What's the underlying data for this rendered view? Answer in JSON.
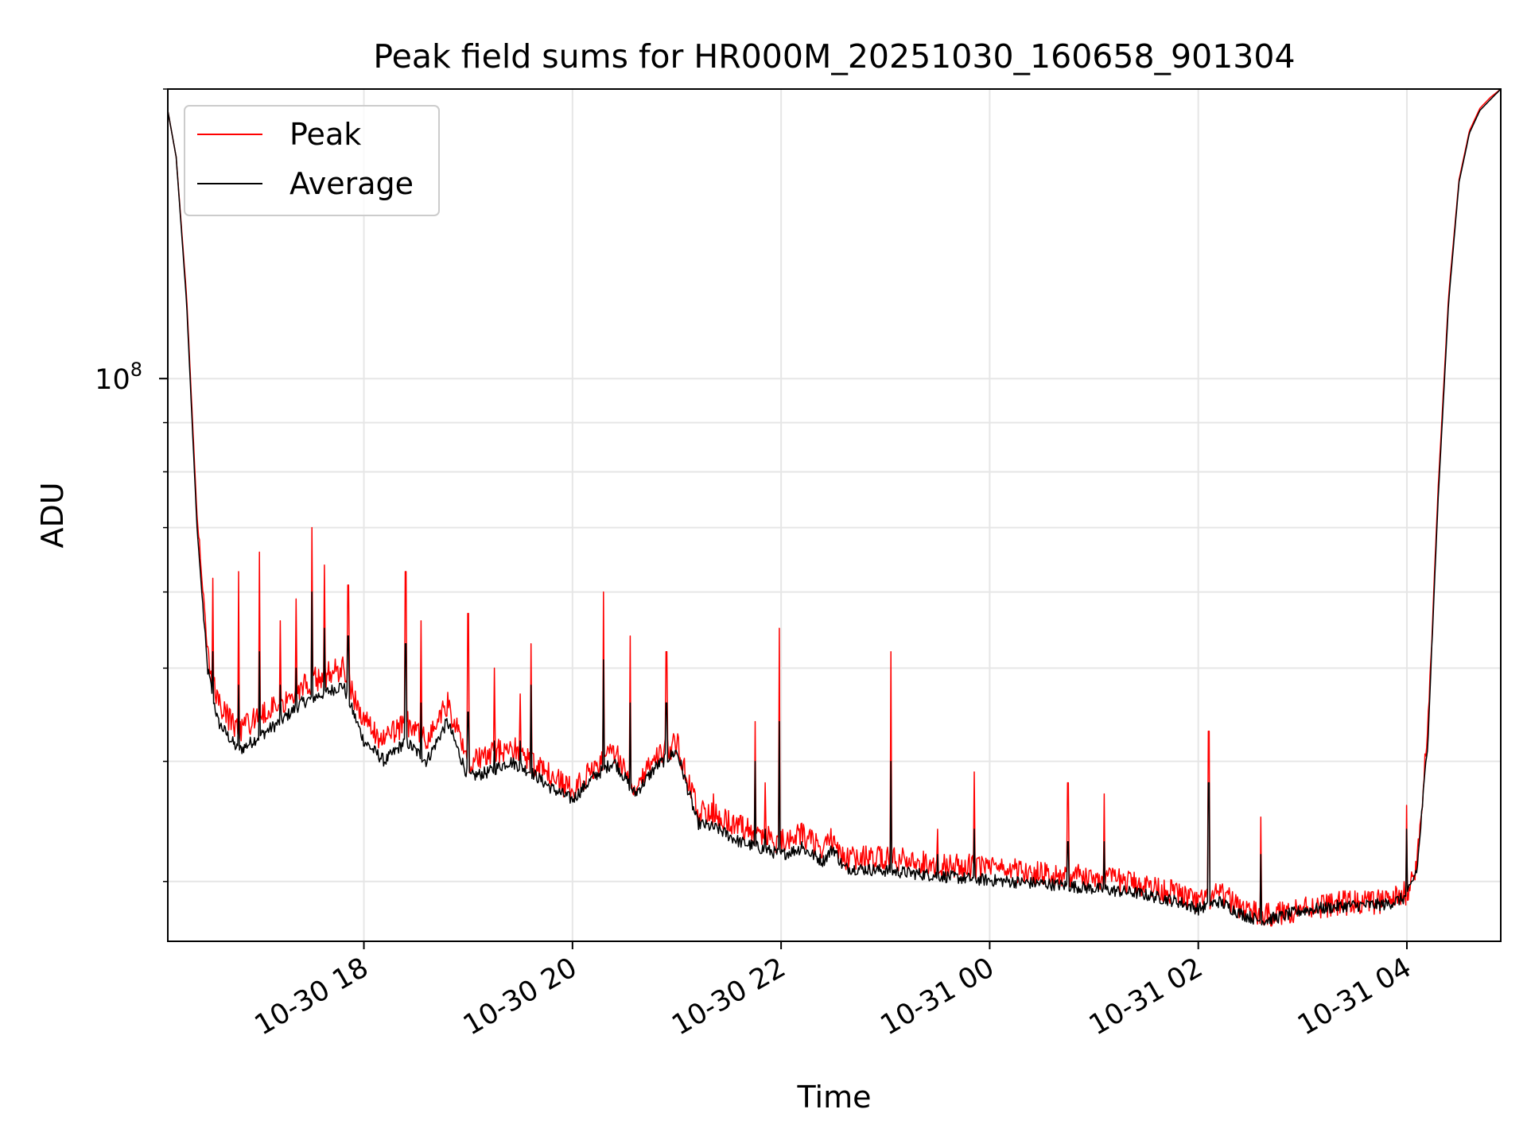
{
  "chart_data": {
    "type": "line",
    "title": "Peak field sums for HR000M_20251030_160658_901304",
    "xlabel": "Time",
    "ylabel": "ADU",
    "yscale": "log",
    "ylim": [
      26000000,
      200000000
    ],
    "y_major_tick": {
      "value": 100000000,
      "label_base": "10",
      "label_exp": "8"
    },
    "y_minor_ticks": [
      30000000,
      40000000,
      50000000,
      60000000,
      70000000,
      80000000,
      90000000,
      200000000
    ],
    "x_unit": "hours since 2025-10-30 00:00",
    "xlim": [
      16.12,
      28.9
    ],
    "x_ticks": [
      {
        "value": 18,
        "label": "10-30 18"
      },
      {
        "value": 20,
        "label": "10-30 20"
      },
      {
        "value": 22,
        "label": "10-30 22"
      },
      {
        "value": 24,
        "label": "10-31 00"
      },
      {
        "value": 26,
        "label": "10-31 02"
      },
      {
        "value": 28,
        "label": "10-31 04"
      }
    ],
    "grid": true,
    "legend_position": "top-left",
    "series": [
      {
        "name": "Average",
        "color": "#000000",
        "noise_amplitude": 0.015,
        "x": [
          16.12,
          16.2,
          16.3,
          16.4,
          16.5,
          16.6,
          16.8,
          17.0,
          17.2,
          17.4,
          17.6,
          17.8,
          18.0,
          18.2,
          18.4,
          18.6,
          18.8,
          19.0,
          19.2,
          19.4,
          19.6,
          19.8,
          20.0,
          20.2,
          20.4,
          20.6,
          20.8,
          21.0,
          21.2,
          21.4,
          21.6,
          21.8,
          22.0,
          22.2,
          22.4,
          22.5,
          22.6,
          23.0,
          23.4,
          23.8,
          24.2,
          24.6,
          25.0,
          25.4,
          25.8,
          26.0,
          26.2,
          26.4,
          26.6,
          26.8,
          27.0,
          27.4,
          27.8,
          28.0,
          28.1,
          28.2,
          28.3,
          28.4,
          28.5,
          28.6,
          28.7,
          28.8,
          28.9
        ],
        "values": [
          190000000,
          170000000,
          120000000,
          70000000,
          50000000,
          44000000,
          41000000,
          42500000,
          44000000,
          46000000,
          47000000,
          48000000,
          42000000,
          40000000,
          42000000,
          40000000,
          44000000,
          38500000,
          39000000,
          40000000,
          39000000,
          37500000,
          36500000,
          38500000,
          40000000,
          37000000,
          39500000,
          41000000,
          34500000,
          34000000,
          33000000,
          32500000,
          32000000,
          32500000,
          31500000,
          32500000,
          31000000,
          30800000,
          30500000,
          30200000,
          30000000,
          29800000,
          29500000,
          29200000,
          28600000,
          28100000,
          28600000,
          27800000,
          27300000,
          27600000,
          28000000,
          28300000,
          28400000,
          28900000,
          31000000,
          42000000,
          75000000,
          120000000,
          160000000,
          180000000,
          190000000,
          195000000,
          200000000
        ]
      },
      {
        "name": "Peak",
        "color": "#ff0000",
        "noise_amplitude": 0.03,
        "x": [
          16.12,
          16.2,
          16.3,
          16.4,
          16.5,
          16.6,
          16.8,
          17.0,
          17.2,
          17.4,
          17.6,
          17.8,
          18.0,
          18.2,
          18.4,
          18.6,
          18.8,
          19.0,
          19.2,
          19.4,
          19.6,
          19.8,
          20.0,
          20.2,
          20.4,
          20.6,
          20.8,
          21.0,
          21.2,
          21.4,
          21.6,
          21.8,
          22.0,
          22.2,
          22.4,
          22.5,
          22.6,
          23.0,
          23.4,
          23.8,
          24.2,
          24.6,
          25.0,
          25.4,
          25.8,
          26.0,
          26.2,
          26.4,
          26.6,
          26.8,
          27.0,
          27.4,
          27.8,
          28.0,
          28.1,
          28.2,
          28.3,
          28.4,
          28.5,
          28.6,
          28.7,
          28.8,
          28.9
        ],
        "values": [
          190000000,
          170000000,
          122000000,
          72000000,
          52000000,
          46000000,
          43000000,
          44500000,
          46000000,
          48000000,
          49000000,
          50000000,
          44000000,
          42000000,
          44000000,
          42000000,
          46000000,
          40000000,
          40500000,
          41500000,
          40000000,
          38500000,
          37300000,
          39500000,
          41000000,
          37800000,
          40500000,
          41800000,
          35500000,
          35200000,
          34200000,
          33500000,
          33000000,
          33500000,
          32500000,
          33300000,
          31800000,
          31700000,
          31400000,
          31100000,
          30800000,
          30600000,
          30300000,
          29900000,
          29200000,
          28500000,
          29100000,
          28300000,
          27600000,
          27800000,
          28200000,
          28500000,
          28600000,
          29200000,
          31500000,
          43000000,
          77000000,
          122000000,
          161000000,
          181000000,
          191000000,
          196000000,
          200000000
        ]
      }
    ],
    "spikes": [
      {
        "x": 16.42,
        "peak": 68000000,
        "avg": 60000000
      },
      {
        "x": 16.55,
        "peak": 62000000,
        "avg": 52000000
      },
      {
        "x": 16.8,
        "peak": 63000000,
        "avg": 48000000
      },
      {
        "x": 17.0,
        "peak": 66000000,
        "avg": 52000000
      },
      {
        "x": 17.2,
        "peak": 56000000,
        "avg": 48000000
      },
      {
        "x": 17.35,
        "peak": 59000000,
        "avg": 50000000
      },
      {
        "x": 17.5,
        "peak": 70000000,
        "avg": 60000000
      },
      {
        "x": 17.62,
        "peak": 64000000,
        "avg": 55000000
      },
      {
        "x": 17.85,
        "peak": 61000000,
        "avg": 54000000
      },
      {
        "x": 18.4,
        "peak": 63000000,
        "avg": 53000000
      },
      {
        "x": 18.55,
        "peak": 56000000,
        "avg": 46000000
      },
      {
        "x": 19.0,
        "peak": 57000000,
        "avg": 45000000
      },
      {
        "x": 19.25,
        "peak": 50000000,
        "avg": 42000000
      },
      {
        "x": 19.5,
        "peak": 47000000,
        "avg": 42000000
      },
      {
        "x": 19.6,
        "peak": 53000000,
        "avg": 48000000
      },
      {
        "x": 20.3,
        "peak": 60000000,
        "avg": 51000000
      },
      {
        "x": 20.55,
        "peak": 54000000,
        "avg": 46000000
      },
      {
        "x": 20.9,
        "peak": 52000000,
        "avg": 46000000
      },
      {
        "x": 21.15,
        "peak": 37000000,
        "avg": 34000000
      },
      {
        "x": 21.35,
        "peak": 37000000,
        "avg": 34000000
      },
      {
        "x": 21.75,
        "peak": 44000000,
        "avg": 40000000
      },
      {
        "x": 21.85,
        "peak": 38000000,
        "avg": 34000000
      },
      {
        "x": 21.98,
        "peak": 55000000,
        "avg": 44000000
      },
      {
        "x": 22.2,
        "peak": 34500000,
        "avg": 33000000
      },
      {
        "x": 23.05,
        "peak": 52000000,
        "avg": 40000000
      },
      {
        "x": 23.5,
        "peak": 34000000,
        "avg": 32000000
      },
      {
        "x": 23.85,
        "peak": 39000000,
        "avg": 34000000
      },
      {
        "x": 24.75,
        "peak": 38000000,
        "avg": 33000000
      },
      {
        "x": 25.1,
        "peak": 37000000,
        "avg": 33000000
      },
      {
        "x": 26.1,
        "peak": 43000000,
        "avg": 38000000
      },
      {
        "x": 26.6,
        "peak": 35000000,
        "avg": 32000000
      },
      {
        "x": 28.0,
        "peak": 36000000,
        "avg": 34000000
      }
    ]
  }
}
